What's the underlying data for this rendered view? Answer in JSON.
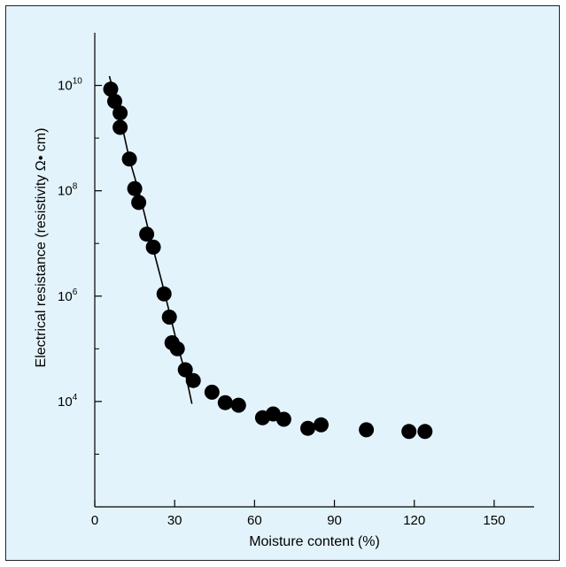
{
  "chart_data": {
    "type": "scatter",
    "xlabel": "Moisture content (%)",
    "ylabel": "Electrical resistance (resistivity Ω• cm)",
    "xlim": [
      0,
      165
    ],
    "ylog": true,
    "ylim_log10": [
      2.0,
      11.0
    ],
    "x_ticks": [
      {
        "value": 0,
        "label": "0"
      },
      {
        "value": 30,
        "label": "30"
      },
      {
        "value": 60,
        "label": "60"
      },
      {
        "value": 90,
        "label": "90"
      },
      {
        "value": 120,
        "label": "120"
      },
      {
        "value": 150,
        "label": "150"
      }
    ],
    "y_ticks": [
      {
        "log10": 10,
        "base": "10",
        "exp": "10"
      },
      {
        "log10": 8,
        "base": "10",
        "exp": "8"
      },
      {
        "log10": 6,
        "base": "10",
        "exp": "6"
      },
      {
        "log10": 4,
        "base": "10",
        "exp": "4"
      }
    ],
    "y_minor_ticks_log10": [
      3,
      5,
      7,
      9
    ],
    "points": [
      {
        "x": 6,
        "y": 8500000000.0
      },
      {
        "x": 7.5,
        "y": 5000000000.0
      },
      {
        "x": 9.5,
        "y": 3000000000.0
      },
      {
        "x": 9.5,
        "y": 1600000000.0
      },
      {
        "x": 13,
        "y": 400000000.0
      },
      {
        "x": 15,
        "y": 110000000.0
      },
      {
        "x": 16.5,
        "y": 60000000.0
      },
      {
        "x": 19.5,
        "y": 15000000.0
      },
      {
        "x": 22,
        "y": 8500000.0
      },
      {
        "x": 26,
        "y": 1100000.0
      },
      {
        "x": 28,
        "y": 400000.0
      },
      {
        "x": 29,
        "y": 130000.0
      },
      {
        "x": 31,
        "y": 100000.0
      },
      {
        "x": 34,
        "y": 40000.0
      },
      {
        "x": 37,
        "y": 25000.0
      },
      {
        "x": 44,
        "y": 15000.0
      },
      {
        "x": 49,
        "y": 9500.0
      },
      {
        "x": 54,
        "y": 8500.0
      },
      {
        "x": 63,
        "y": 4900.0
      },
      {
        "x": 67,
        "y": 5800.0
      },
      {
        "x": 71,
        "y": 4600.0
      },
      {
        "x": 80,
        "y": 3100.0
      },
      {
        "x": 85,
        "y": 3600.0
      },
      {
        "x": 102,
        "y": 2900.0
      },
      {
        "x": 118,
        "y": 2700.0
      },
      {
        "x": 124,
        "y": 2700.0
      }
    ],
    "fit_line": [
      {
        "x": 5.5,
        "y": 15000000000.0
      },
      {
        "x": 9.5,
        "y": 2500000000.0
      },
      {
        "x": 13,
        "y": 400000000.0
      },
      {
        "x": 17,
        "y": 80000000.0
      },
      {
        "x": 21,
        "y": 12000000.0
      },
      {
        "x": 25,
        "y": 2000000.0
      },
      {
        "x": 28,
        "y": 500000.0
      },
      {
        "x": 31,
        "y": 120000.0
      },
      {
        "x": 34,
        "y": 35000.0
      },
      {
        "x": 36.5,
        "y": 9000.0
      }
    ],
    "grid": false,
    "marker_color": "#000000",
    "background_color": "#e3f3fb"
  }
}
